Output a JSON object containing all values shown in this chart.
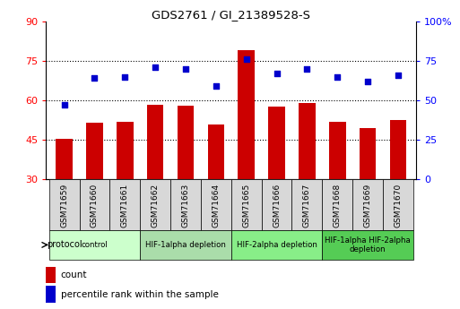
{
  "title": "GDS2761 / GI_21389528-S",
  "samples": [
    "GSM71659",
    "GSM71660",
    "GSM71661",
    "GSM71662",
    "GSM71663",
    "GSM71664",
    "GSM71665",
    "GSM71666",
    "GSM71667",
    "GSM71668",
    "GSM71669",
    "GSM71670"
  ],
  "counts": [
    45.5,
    51.5,
    52.0,
    58.5,
    58.0,
    51.0,
    79.0,
    57.5,
    59.0,
    52.0,
    49.5,
    52.5
  ],
  "percentiles": [
    47.0,
    64.0,
    65.0,
    71.0,
    70.0,
    59.0,
    76.0,
    67.0,
    70.0,
    65.0,
    62.0,
    66.0
  ],
  "bar_color": "#cc0000",
  "dot_color": "#0000cc",
  "ylim_left": [
    30,
    90
  ],
  "ylim_right": [
    0,
    100
  ],
  "yticks_left": [
    30,
    45,
    60,
    75,
    90
  ],
  "yticks_right": [
    0,
    25,
    50,
    75,
    100
  ],
  "ytick_labels_right": [
    "0",
    "25",
    "50",
    "75",
    "100%"
  ],
  "hlines": [
    45,
    60,
    75
  ],
  "groups": [
    {
      "label": "control",
      "start": 0,
      "end": 2,
      "color": "#ccffcc"
    },
    {
      "label": "HIF-1alpha depletion",
      "start": 3,
      "end": 5,
      "color": "#aaddaa"
    },
    {
      "label": "HIF-2alpha depletion",
      "start": 6,
      "end": 8,
      "color": "#88ee88"
    },
    {
      "label": "HIF-1alpha HIF-2alpha\ndepletion",
      "start": 9,
      "end": 11,
      "color": "#55cc55"
    }
  ],
  "legend_count_label": "count",
  "legend_pct_label": "percentile rank within the sample",
  "protocol_label": "protocol"
}
